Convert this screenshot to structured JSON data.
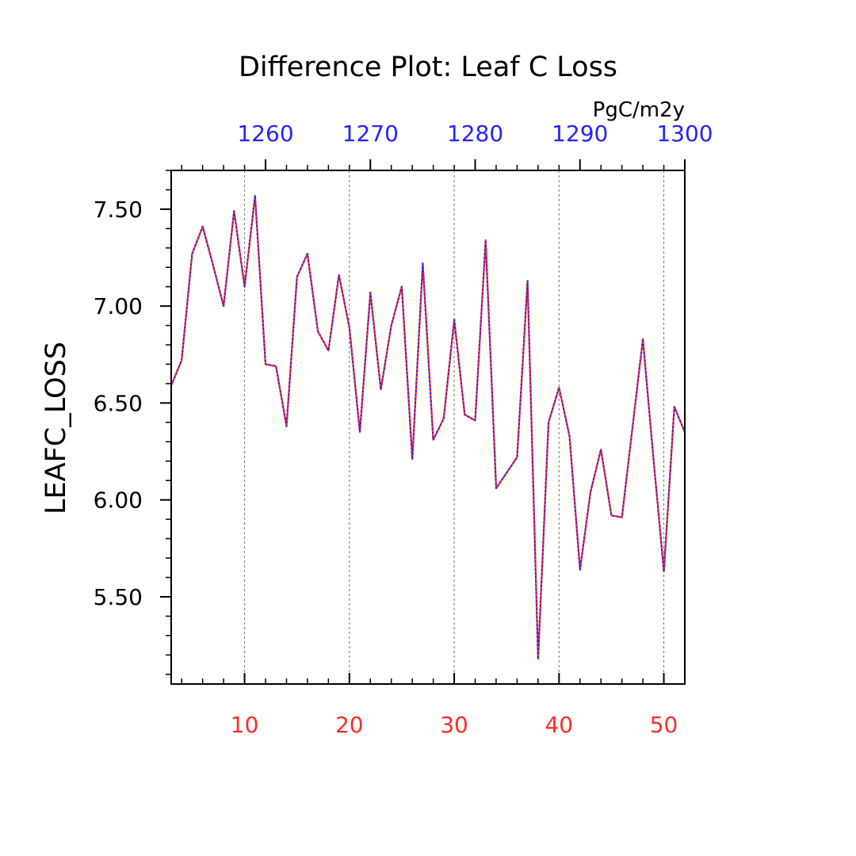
{
  "chart_data": {
    "type": "line",
    "title": "Difference Plot: Leaf C Loss",
    "units": "PgC/m2y",
    "ylabel": "LEAFC_LOSS",
    "xlim_bottom": [
      3,
      52
    ],
    "xlim_top": [
      1251,
      1300
    ],
    "ylim": [
      5.05,
      7.7
    ],
    "bottom_ticks": [
      "10",
      "20",
      "30",
      "40",
      "50"
    ],
    "bottom_tick_values": [
      10,
      20,
      30,
      40,
      50
    ],
    "top_ticks": [
      "1260",
      "1270",
      "1280",
      "1290",
      "1300"
    ],
    "top_tick_values": [
      1260,
      1270,
      1280,
      1290,
      1300
    ],
    "y_ticks": [
      "5.50",
      "6.00",
      "6.50",
      "7.00",
      "7.50"
    ],
    "y_tick_values": [
      5.5,
      6.0,
      6.5,
      7.0,
      7.5
    ],
    "grid": "vertical dashed at major x ticks",
    "colors": {
      "bottom_axis": "#ff2a2a",
      "top_axis": "#2323ff",
      "series_a": "#ff2a2a",
      "series_b": "#2323ff",
      "frame": "#000000"
    },
    "x": [
      3,
      4,
      5,
      6,
      7,
      8,
      9,
      10,
      11,
      12,
      13,
      14,
      15,
      16,
      17,
      18,
      19,
      20,
      21,
      22,
      23,
      24,
      25,
      26,
      27,
      28,
      29,
      30,
      31,
      32,
      33,
      34,
      35,
      36,
      37,
      38,
      39,
      40,
      41,
      42,
      43,
      44,
      45,
      46,
      47,
      48,
      49,
      50,
      51,
      52
    ],
    "series": [
      {
        "values": [
          6.59,
          6.72,
          7.27,
          7.41,
          7.21,
          7.0,
          7.49,
          7.1,
          7.57,
          6.7,
          6.69,
          6.38,
          7.15,
          7.27,
          6.87,
          6.77,
          7.16,
          6.89,
          6.35,
          7.07,
          6.57,
          6.9,
          7.1,
          6.21,
          7.22,
          6.31,
          6.42,
          6.93,
          6.44,
          6.41,
          7.34,
          6.06,
          6.14,
          6.22,
          7.13,
          5.18,
          6.4,
          6.58,
          6.33,
          5.64,
          6.04,
          6.26,
          5.92,
          5.91,
          6.37,
          6.83,
          6.22,
          5.63,
          6.48,
          6.35
        ]
      },
      {
        "values": [
          6.59,
          6.72,
          7.27,
          7.41,
          7.21,
          7.0,
          7.49,
          7.1,
          7.57,
          6.7,
          6.69,
          6.38,
          7.15,
          7.27,
          6.87,
          6.77,
          7.16,
          6.89,
          6.35,
          7.07,
          6.57,
          6.9,
          7.1,
          6.21,
          7.22,
          6.31,
          6.42,
          6.93,
          6.44,
          6.41,
          7.34,
          6.06,
          6.14,
          6.22,
          7.13,
          5.18,
          6.4,
          6.58,
          6.33,
          5.64,
          6.04,
          6.26,
          5.92,
          5.91,
          6.37,
          6.83,
          6.22,
          5.63,
          6.48,
          6.35
        ]
      }
    ]
  }
}
